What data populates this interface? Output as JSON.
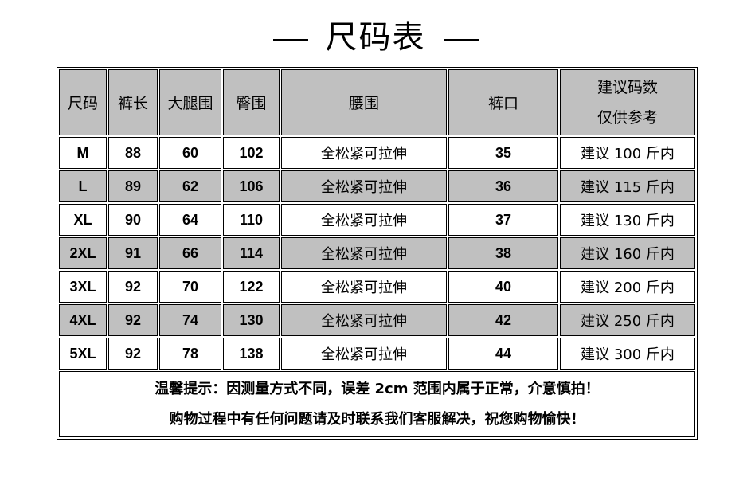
{
  "title": "尺码表",
  "headers": [
    "尺码",
    "裤长",
    "大腿围",
    "臀围",
    "腰围",
    "裤口"
  ],
  "last_header": [
    "建议码数",
    "仅供参考"
  ],
  "rows": [
    [
      "M",
      "88",
      "60",
      "102",
      "全松紧可拉伸",
      "35",
      "建议 100 斤内"
    ],
    [
      "L",
      "89",
      "62",
      "106",
      "全松紧可拉伸",
      "36",
      "建议 115 斤内"
    ],
    [
      "XL",
      "90",
      "64",
      "110",
      "全松紧可拉伸",
      "37",
      "建议 130 斤内"
    ],
    [
      "2XL",
      "91",
      "66",
      "114",
      "全松紧可拉伸",
      "38",
      "建议 160 斤内"
    ],
    [
      "3XL",
      "92",
      "70",
      "122",
      "全松紧可拉伸",
      "40",
      "建议 200 斤内"
    ],
    [
      "4XL",
      "92",
      "74",
      "130",
      "全松紧可拉伸",
      "42",
      "建议 250 斤内"
    ],
    [
      "5XL",
      "92",
      "78",
      "138",
      "全松紧可拉伸",
      "44",
      "建议 300 斤内"
    ]
  ],
  "notes": [
    "温馨提示：因测量方式不同，误差 2cm 范围内属于正常，介意慎拍！",
    "购物过程中有任何问题请及时联系我们客服解决，祝您购物愉快！"
  ],
  "colors": {
    "header_bg": "#c0c0c0",
    "alt_row_bg": "#c0c0c0"
  }
}
